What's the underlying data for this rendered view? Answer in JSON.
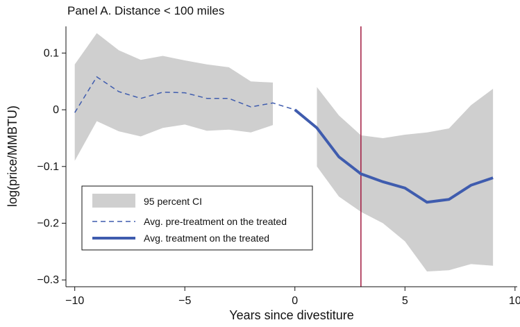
{
  "chart_data": {
    "type": "line",
    "title": "Panel A. Distance < 100 miles",
    "x_label": "Years since divestiture",
    "y_label": "log(price/MMBTU)",
    "xlim": [
      -10.4,
      10.1
    ],
    "ylim": [
      -0.312,
      0.147
    ],
    "xticks": [
      {
        "value": -10,
        "label": "−10"
      },
      {
        "value": -5,
        "label": "−5"
      },
      0,
      5,
      10
    ],
    "yticks": [
      0.1,
      0,
      {
        "value": -0.1,
        "label": "−0.1"
      },
      {
        "value": -0.2,
        "label": "−0.2"
      },
      {
        "value": -0.3,
        "label": "−0.3"
      }
    ],
    "vline": {
      "x": 3,
      "color": "#a0173d"
    },
    "band": {
      "name": "95 percent CI",
      "color": "#cfcfcf",
      "x": [
        -10,
        -9,
        -8,
        -7,
        -6,
        -5,
        -4,
        -3,
        -2,
        -1,
        0,
        1,
        2,
        3,
        4,
        5,
        6,
        7,
        8,
        9
      ],
      "upper": [
        0.08,
        0.135,
        0.105,
        0.088,
        0.095,
        0.087,
        0.08,
        0.075,
        0.05,
        0.048,
        null,
        0.04,
        -0.01,
        -0.045,
        -0.05,
        -0.044,
        -0.04,
        -0.033,
        0.008,
        0.037
      ],
      "lower": [
        -0.09,
        -0.02,
        -0.038,
        -0.047,
        -0.032,
        -0.026,
        -0.037,
        -0.035,
        -0.04,
        -0.027,
        null,
        -0.1,
        -0.153,
        -0.18,
        -0.2,
        -0.232,
        -0.285,
        -0.283,
        -0.272,
        -0.275
      ]
    },
    "series": [
      {
        "name": "Avg. pre-treatment on the treated",
        "color": "#3f5cae",
        "dashed": true,
        "x": [
          -10,
          -9,
          -8,
          -7,
          -6,
          -5,
          -4,
          -3,
          -2,
          -1,
          0
        ],
        "values": [
          -0.005,
          0.058,
          0.032,
          0.02,
          0.031,
          0.03,
          0.02,
          0.02,
          0.005,
          0.012,
          0
        ]
      },
      {
        "name": "Avg. treatment on the treated",
        "color": "#3f5cae",
        "dashed": false,
        "x": [
          0,
          1,
          2,
          3,
          4,
          5,
          6,
          7,
          8,
          9
        ],
        "values": [
          0,
          -0.032,
          -0.083,
          -0.113,
          -0.127,
          -0.138,
          -0.163,
          -0.158,
          -0.133,
          -0.12
        ]
      }
    ]
  }
}
